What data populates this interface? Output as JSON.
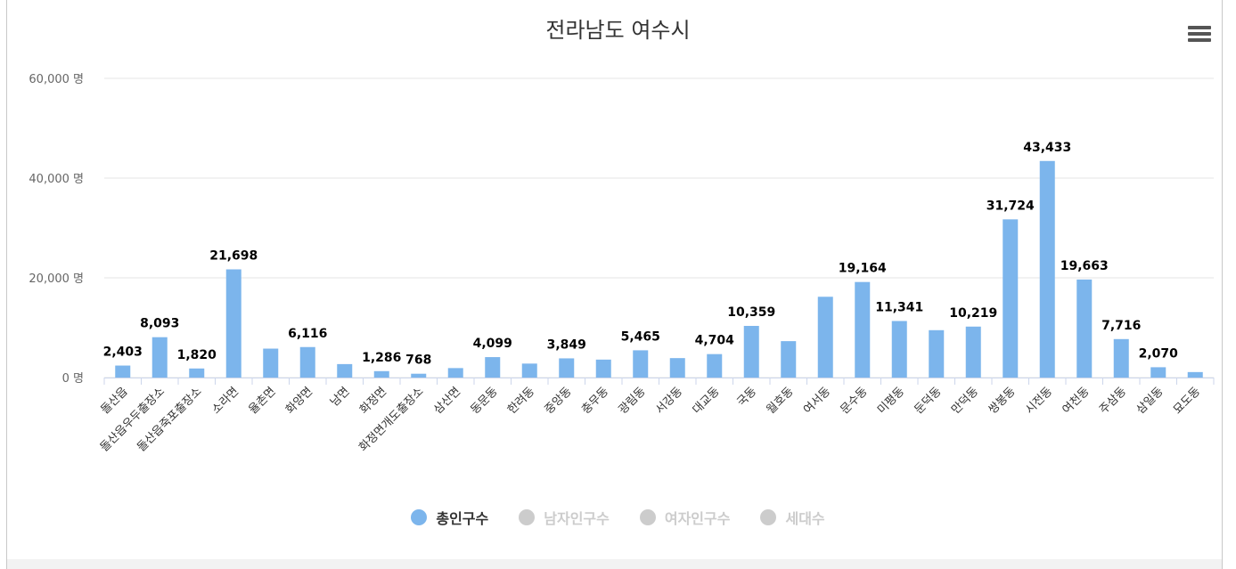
{
  "title": "전라남도 여수시",
  "icons": {
    "menu": "hamburger-menu-icon"
  },
  "colors": {
    "bar": "#7cb5ec",
    "grid": "#e6e6e6",
    "legend_inactive": "#cccccc",
    "text": "#333333"
  },
  "chart_data": {
    "type": "bar",
    "title": "전라남도 여수시",
    "ylabel": "",
    "xlabel": "",
    "ylim": [
      0,
      60000
    ],
    "y_ticks": [
      {
        "value": 0,
        "label": "0 명"
      },
      {
        "value": 20000,
        "label": "20,000 명"
      },
      {
        "value": 40000,
        "label": "40,000 명"
      },
      {
        "value": 60000,
        "label": "60,000 명"
      }
    ],
    "grid": true,
    "legend_position": "bottom-center",
    "categories": [
      "돌산읍",
      "돌산읍우두출장소",
      "돌산읍죽포출장소",
      "소라면",
      "율촌면",
      "화양면",
      "남면",
      "화정면",
      "화정면개도출장소",
      "삼산면",
      "동문동",
      "한려동",
      "중앙동",
      "충무동",
      "광림동",
      "서강동",
      "대교동",
      "국동",
      "월호동",
      "여서동",
      "문수동",
      "미평동",
      "둔덕동",
      "만덕동",
      "쌍봉동",
      "시전동",
      "여천동",
      "주삼동",
      "삼일동",
      "묘도동"
    ],
    "series": [
      {
        "name": "총인구수",
        "visible": true,
        "values": [
          2403,
          8093,
          1820,
          21698,
          5800,
          6116,
          2700,
          1286,
          768,
          1900,
          4099,
          2800,
          3849,
          3600,
          5465,
          3900,
          4704,
          10359,
          7300,
          16200,
          19164,
          11341,
          9500,
          10219,
          31724,
          43433,
          19663,
          7716,
          2070,
          1100
        ],
        "labels": [
          "2,403",
          "8,093",
          "1,820",
          "21,698",
          "",
          "6,116",
          "",
          "1,286",
          "768",
          "",
          "4,099",
          "",
          "3,849",
          "",
          "5,465",
          "",
          "4,704",
          "10,359",
          "",
          "",
          "19,164",
          "11,341",
          "",
          "10,219",
          "31,724",
          "43,433",
          "19,663",
          "7,716",
          "2,070",
          ""
        ]
      },
      {
        "name": "남자인구수",
        "visible": false
      },
      {
        "name": "여자인구수",
        "visible": false
      },
      {
        "name": "세대수",
        "visible": false
      }
    ]
  }
}
